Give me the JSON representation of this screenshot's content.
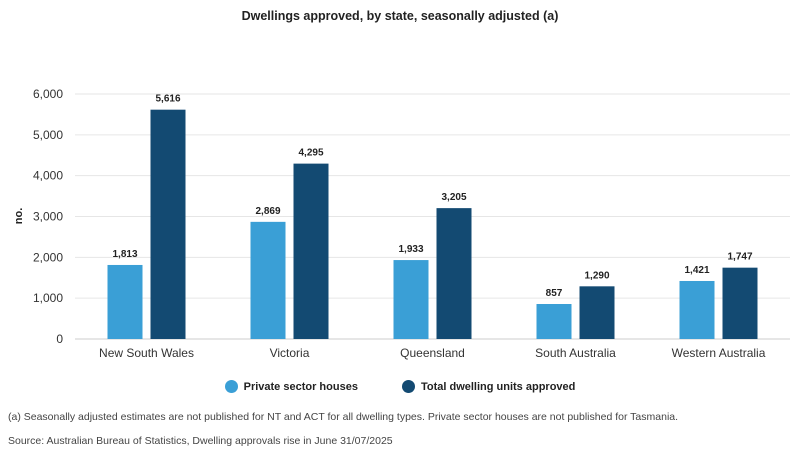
{
  "chart_data": {
    "type": "bar",
    "title": "Dwellings approved, by state, seasonally adjusted (a)",
    "xlabel": "",
    "ylabel": "no.",
    "ylim": [
      0,
      6000
    ],
    "yticks": [
      "0",
      "1,000",
      "2,000",
      "3,000",
      "4,000",
      "5,000",
      "6,000"
    ],
    "grid": true,
    "legend_position": "bottom",
    "categories": [
      "New South Wales",
      "Victoria",
      "Queensland",
      "South Australia",
      "Western Australia"
    ],
    "series": [
      {
        "name": "Private sector houses",
        "color": "#3a9fd6",
        "values": [
          1813,
          2869,
          1933,
          857,
          1421
        ],
        "labels": [
          "1,813",
          "2,869",
          "1,933",
          "857",
          "1,421"
        ]
      },
      {
        "name": "Total dwelling units approved",
        "color": "#134a72",
        "values": [
          5616,
          4295,
          3205,
          1290,
          1747
        ],
        "labels": [
          "5,616",
          "4,295",
          "3,205",
          "1,290",
          "1,747"
        ]
      }
    ]
  },
  "footnote": "(a) Seasonally adjusted estimates are not published for NT and ACT for all dwelling types. Private sector houses are not published for Tasmania.",
  "source": "Source: Australian Bureau of Statistics, Dwelling approvals rise in June 31/07/2025"
}
